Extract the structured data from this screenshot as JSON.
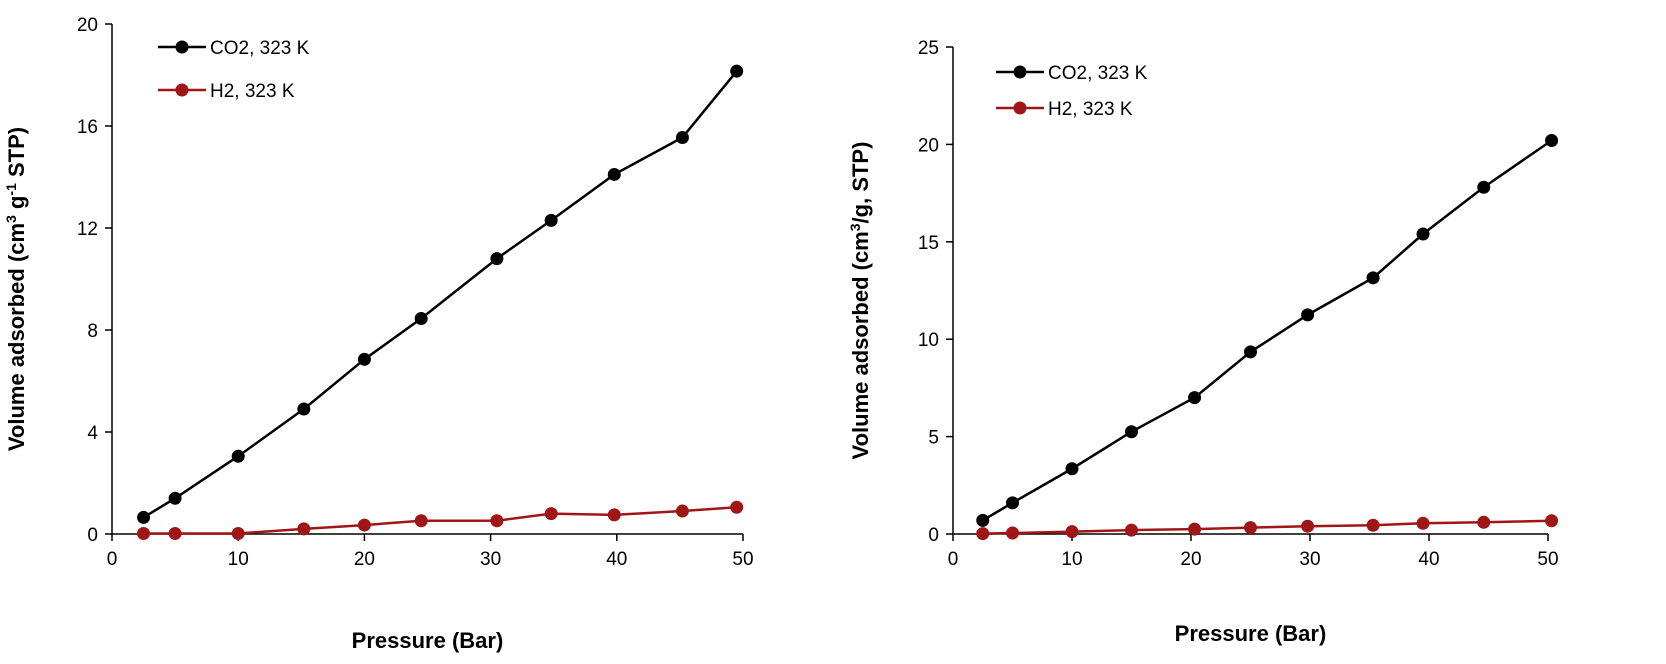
{
  "chart_data": [
    {
      "type": "line",
      "title": "",
      "xlabel": "Pressure (Bar)",
      "ylabel": {
        "pre": "Volume adsorbed (cm",
        "sup1": "3",
        "mid": " g",
        "sup2": "-1",
        "post": " STP)"
      },
      "xlim": [
        0,
        50
      ],
      "ylim": [
        0,
        20
      ],
      "xticks": [
        0,
        10,
        20,
        30,
        40,
        50
      ],
      "yticks": [
        0,
        4,
        8,
        12,
        16,
        20
      ],
      "grid": false,
      "legend_position": "top-left",
      "series": [
        {
          "name": "CO2, 323 K",
          "color": "#000000",
          "x": [
            2.5,
            5,
            10,
            15.2,
            20,
            24.5,
            30.5,
            34.8,
            39.8,
            45.2,
            49.5
          ],
          "y": [
            0.65,
            1.4,
            3.05,
            4.9,
            6.85,
            8.45,
            10.8,
            12.3,
            14.1,
            15.55,
            18.15
          ]
        },
        {
          "name": "H2, 323 K",
          "color": "#a01616",
          "x": [
            2.5,
            5,
            10,
            15.2,
            20,
            24.5,
            30.5,
            34.8,
            39.8,
            45.2,
            49.5
          ],
          "y": [
            0.02,
            0.02,
            0.02,
            0.2,
            0.35,
            0.52,
            0.52,
            0.8,
            0.75,
            0.9,
            1.05
          ]
        }
      ]
    },
    {
      "type": "line",
      "title": "",
      "xlabel": "Pressure (Bar)",
      "ylabel": {
        "pre": "Volume adsorbed (cm",
        "sup1": "3",
        "mid": "/g, STP)",
        "sup2": "",
        "post": ""
      },
      "xlim": [
        0,
        50
      ],
      "ylim": [
        0,
        25
      ],
      "xticks": [
        0,
        10,
        20,
        30,
        40,
        50
      ],
      "yticks": [
        0,
        5,
        10,
        15,
        20,
        25
      ],
      "grid": false,
      "legend_position": "top-left",
      "series": [
        {
          "name": "CO2, 323 K",
          "color": "#000000",
          "x": [
            2.5,
            5,
            10,
            15,
            20.3,
            25,
            29.8,
            35.3,
            39.5,
            44.6,
            50.3
          ],
          "y": [
            0.7,
            1.6,
            3.35,
            5.25,
            7.0,
            9.35,
            11.25,
            13.15,
            15.4,
            17.8,
            20.2
          ]
        },
        {
          "name": "H2, 323 K",
          "color": "#a01616",
          "x": [
            2.5,
            5,
            10,
            15,
            20.3,
            25,
            29.8,
            35.3,
            39.5,
            44.6,
            50.3
          ],
          "y": [
            0.02,
            0.05,
            0.12,
            0.2,
            0.25,
            0.33,
            0.4,
            0.45,
            0.55,
            0.6,
            0.68
          ]
        }
      ]
    }
  ]
}
